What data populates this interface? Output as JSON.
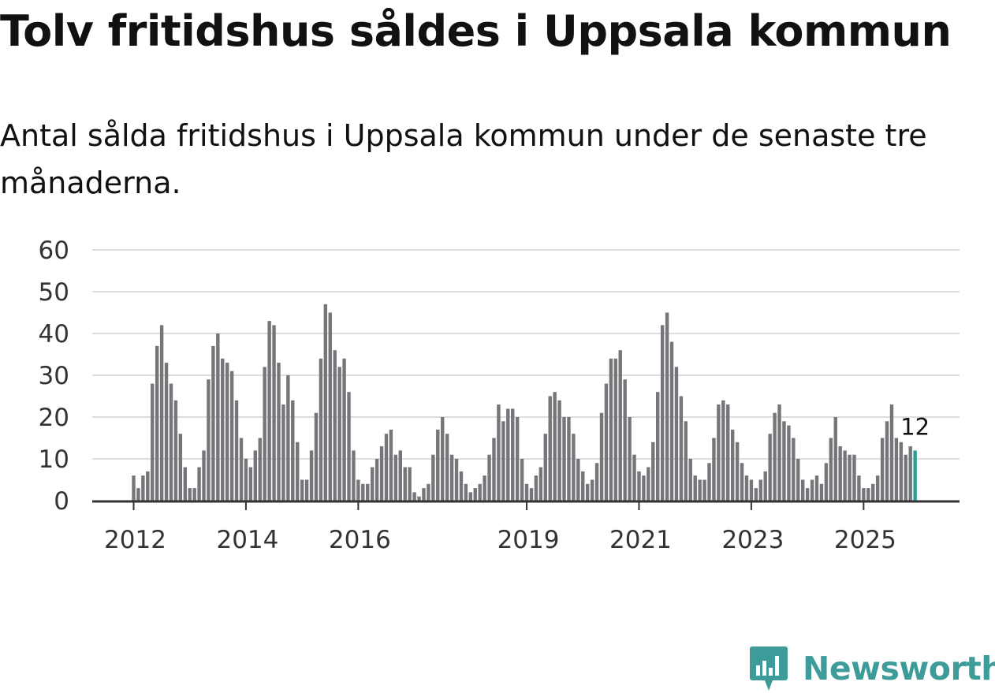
{
  "chart_data": {
    "type": "bar",
    "title": "Tolv fritidshus såldes i Uppsala kommun",
    "subtitle": "Antal sålda fritidshus i Uppsala kommun under de senaste tre månaderna.",
    "xlabel": "",
    "ylabel": "",
    "ylim": [
      0,
      60
    ],
    "yticks": [
      "0",
      "10",
      "20",
      "30",
      "40",
      "50",
      "60"
    ],
    "xticks": [
      "2012",
      "2014",
      "2016",
      "2019",
      "2021",
      "2023",
      "2025"
    ],
    "xtick_index": [
      0,
      24,
      48,
      84,
      108,
      132,
      156
    ],
    "grid": true,
    "highlight_color": "#2a9d96",
    "bar_color": "#767579",
    "last_value_label": "12",
    "values": [
      6,
      3,
      6,
      7,
      28,
      37,
      42,
      33,
      28,
      24,
      16,
      8,
      3,
      3,
      8,
      12,
      29,
      37,
      40,
      34,
      33,
      31,
      24,
      15,
      10,
      8,
      12,
      15,
      32,
      43,
      42,
      33,
      23,
      30,
      24,
      14,
      5,
      5,
      12,
      21,
      34,
      47,
      45,
      36,
      32,
      34,
      26,
      12,
      5,
      4,
      4,
      8,
      10,
      13,
      16,
      17,
      11,
      12,
      8,
      8,
      2,
      1,
      3,
      4,
      11,
      17,
      20,
      16,
      11,
      10,
      7,
      4,
      2,
      3,
      4,
      6,
      11,
      15,
      23,
      19,
      22,
      22,
      20,
      10,
      4,
      3,
      6,
      8,
      16,
      25,
      26,
      24,
      20,
      20,
      16,
      10,
      7,
      4,
      5,
      9,
      21,
      28,
      34,
      34,
      36,
      29,
      20,
      11,
      7,
      6,
      8,
      14,
      26,
      42,
      45,
      38,
      32,
      25,
      19,
      10,
      6,
      5,
      5,
      9,
      15,
      23,
      24,
      23,
      17,
      14,
      9,
      6,
      5,
      3,
      5,
      7,
      16,
      21,
      23,
      19,
      18,
      15,
      10,
      5,
      3,
      5,
      6,
      4,
      9,
      15,
      20,
      13,
      12,
      11,
      11,
      6,
      3,
      3,
      4,
      6,
      15,
      19,
      23,
      15,
      14,
      11,
      13,
      12
    ]
  },
  "brand": {
    "name": "Newsworthy",
    "color": "#3d9c99"
  }
}
